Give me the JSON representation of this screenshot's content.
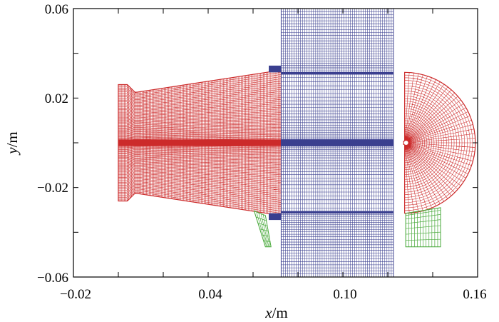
{
  "chart_data": {
    "type": "mesh-diagram",
    "title": "",
    "xlabel_var": "x",
    "xlabel_unit": "/m",
    "ylabel_var": "y",
    "ylabel_unit": "/m",
    "xlim": [
      -0.02,
      0.16
    ],
    "ylim": [
      -0.06,
      0.06
    ],
    "x_tick_labels": [
      "−0.02",
      "0.04",
      "0.10",
      "0.16"
    ],
    "x_tick_values": [
      -0.02,
      0.04,
      0.1,
      0.16
    ],
    "y_tick_labels": [
      "0.06",
      "0.02",
      "−0.02",
      "−0.06"
    ],
    "y_tick_values": [
      0.06,
      0.02,
      -0.02,
      -0.06
    ],
    "x_minor_ticks": [
      0.0,
      0.02,
      0.06,
      0.08,
      0.12,
      0.14
    ],
    "y_minor_ticks": [
      0.04,
      0.0,
      -0.04
    ],
    "regions": [
      {
        "name": "nozzle-mesh",
        "color": "#cc2a2a",
        "outline_data": [
          [
            0.0,
            0.026
          ],
          [
            0.004,
            0.026
          ],
          [
            0.0075,
            0.0225
          ],
          [
            0.0725,
            0.0325
          ],
          [
            0.0725,
            -0.0325
          ],
          [
            0.0075,
            -0.0225
          ],
          [
            0.004,
            -0.026
          ],
          [
            0.0,
            -0.026
          ]
        ],
        "x_range": [
          0.0,
          0.0725
        ],
        "centerline_band": [
          -0.0015,
          0.0015
        ]
      },
      {
        "name": "wall-block-mesh",
        "color": "#3a3f8f",
        "x_range": [
          0.0725,
          0.1225
        ],
        "y_range": [
          -0.06,
          0.06
        ],
        "dense_bands": [
          [
            -0.0015,
            0.0015
          ],
          [
            0.0305,
            0.0315
          ],
          [
            -0.0315,
            -0.0305
          ]
        ],
        "step_block": {
          "x_range": [
            0.067,
            0.0725
          ],
          "y_top": [
            0.0315,
            0.0345
          ],
          "y_bot": [
            -0.0345,
            -0.0315
          ]
        }
      },
      {
        "name": "hemisphere-mesh",
        "color": "#cc2a2a",
        "center": [
          0.1275,
          0.0
        ],
        "radius_y": 0.0315,
        "x_extent": 0.0315,
        "flat_face_x": 0.1275
      },
      {
        "name": "green-strut-left",
        "color": "#4aaa3c",
        "outline_data": [
          [
            0.0605,
            -0.0305
          ],
          [
            0.0655,
            -0.0325
          ],
          [
            0.068,
            -0.0465
          ],
          [
            0.0655,
            -0.0465
          ]
        ]
      },
      {
        "name": "green-block-right",
        "color": "#4aaa3c",
        "outline_data": [
          [
            0.128,
            -0.0315
          ],
          [
            0.1435,
            -0.029
          ],
          [
            0.1435,
            -0.0465
          ],
          [
            0.128,
            -0.0465
          ]
        ]
      }
    ]
  }
}
